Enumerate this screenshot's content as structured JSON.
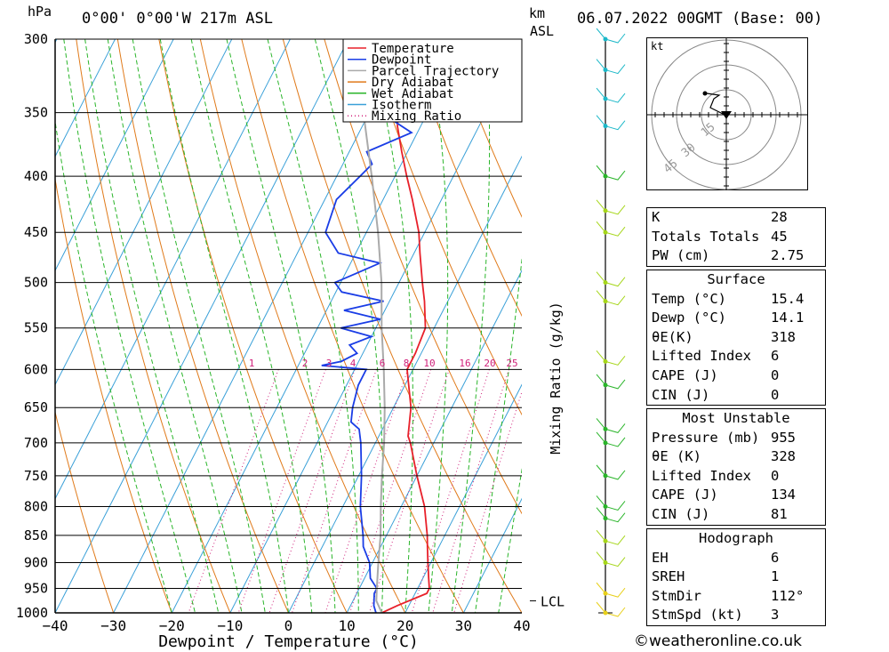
{
  "header": {
    "location": "0°00' 0°00'W 217m ASL",
    "datetime": "06.07.2022 00GMT (Base: 00)",
    "hpa_label": "hPa",
    "km_label": "km",
    "asl_label": "ASL"
  },
  "chart_data": {
    "type": "line",
    "title": "",
    "xlabel": "Dewpoint / Temperature (°C)",
    "ylabel": "hPa",
    "y2label": "Mixing Ratio (g/kg)",
    "xlim": [
      -40,
      40
    ],
    "ylim": [
      1000,
      300
    ],
    "xticks": [
      "−40",
      "−30",
      "−20",
      "−10",
      "0",
      "10",
      "20",
      "30",
      "40"
    ],
    "yticks": [
      300,
      350,
      400,
      450,
      500,
      550,
      600,
      650,
      700,
      750,
      800,
      850,
      900,
      950,
      1000
    ],
    "mixing_ratio_labels": [
      "1",
      "2",
      "3",
      "4",
      "6",
      "8",
      "10",
      "16",
      "20",
      "25"
    ],
    "legend": [
      "Temperature",
      "Dewpoint",
      "Parcel Trajectory",
      "Dry Adiabat",
      "Wet Adiabat",
      "Isotherm",
      "Mixing Ratio"
    ],
    "legend_position": "top-right",
    "lcl_label": "LCL",
    "lcl_pressure": 975,
    "series": [
      {
        "name": "Temperature",
        "color": "#e8202a",
        "points": [
          [
            1000,
            16
          ],
          [
            985,
            18
          ],
          [
            960,
            22
          ],
          [
            950,
            22
          ],
          [
            930,
            21
          ],
          [
            900,
            19.5
          ],
          [
            870,
            18
          ],
          [
            850,
            17
          ],
          [
            800,
            14
          ],
          [
            750,
            10
          ],
          [
            700,
            6
          ],
          [
            690,
            5
          ],
          [
            650,
            3
          ],
          [
            600,
            -1
          ],
          [
            580,
            -1
          ],
          [
            550,
            -1.5
          ],
          [
            520,
            -4
          ],
          [
            500,
            -6
          ],
          [
            470,
            -9
          ],
          [
            450,
            -11
          ],
          [
            420,
            -15
          ],
          [
            400,
            -18
          ],
          [
            380,
            -21
          ],
          [
            360,
            -24
          ],
          [
            350,
            -25
          ],
          [
            330,
            -29
          ],
          [
            320,
            -32
          ],
          [
            300,
            -35
          ]
        ]
      },
      {
        "name": "Dewpoint",
        "color": "#1a3de6",
        "points": [
          [
            1000,
            15
          ],
          [
            985,
            14
          ],
          [
            960,
            13
          ],
          [
            950,
            13
          ],
          [
            930,
            11
          ],
          [
            900,
            9.5
          ],
          [
            870,
            7
          ],
          [
            850,
            6
          ],
          [
            800,
            3
          ],
          [
            750,
            0.5
          ],
          [
            700,
            -2.5
          ],
          [
            680,
            -4
          ],
          [
            670,
            -6
          ],
          [
            650,
            -7
          ],
          [
            620,
            -8
          ],
          [
            600,
            -8
          ],
          [
            595,
            -16
          ],
          [
            590,
            -13
          ],
          [
            580,
            -11
          ],
          [
            570,
            -13
          ],
          [
            560,
            -10
          ],
          [
            550,
            -16
          ],
          [
            540,
            -10
          ],
          [
            530,
            -17
          ],
          [
            520,
            -11
          ],
          [
            510,
            -19
          ],
          [
            500,
            -21
          ],
          [
            490,
            -18
          ],
          [
            480,
            -15
          ],
          [
            470,
            -23
          ],
          [
            450,
            -27
          ],
          [
            420,
            -28
          ],
          [
            400,
            -26
          ],
          [
            390,
            -25
          ],
          [
            380,
            -27
          ],
          [
            365,
            -21
          ],
          [
            350,
            -28
          ],
          [
            340,
            -25
          ],
          [
            330,
            -33
          ],
          [
            320,
            -37
          ],
          [
            310,
            -37
          ],
          [
            300,
            -37
          ]
        ]
      },
      {
        "name": "Parcel Trajectory",
        "color": "#aaaaaa",
        "points": [
          [
            1000,
            16
          ],
          [
            975,
            14
          ],
          [
            950,
            13
          ],
          [
            900,
            11
          ],
          [
            850,
            9
          ],
          [
            800,
            6.5
          ],
          [
            750,
            4
          ],
          [
            700,
            1.5
          ],
          [
            650,
            -1.5
          ],
          [
            600,
            -5
          ],
          [
            550,
            -9
          ],
          [
            500,
            -13
          ],
          [
            450,
            -18
          ],
          [
            400,
            -24
          ],
          [
            350,
            -31
          ],
          [
            300,
            -40
          ]
        ]
      }
    ]
  },
  "hodograph": {
    "unit_label": "kt",
    "rings": [
      "15",
      "30",
      "45"
    ]
  },
  "indices": {
    "k_label": "K",
    "k": "28",
    "tt_label": "Totals Totals",
    "tt": "45",
    "pw_label": "PW (cm)",
    "pw": "2.75",
    "surface_title": "Surface",
    "temp_label": "Temp (°C)",
    "temp": "15.4",
    "dewp_label": "Dewp (°C)",
    "dewp": "14.1",
    "theta_label": "θE(K)",
    "theta": "318",
    "li_label": "Lifted Index",
    "li": "6",
    "cape_label": "CAPE (J)",
    "cape": "0",
    "cin_label": "CIN (J)",
    "cin": "0",
    "mu_title": "Most Unstable",
    "mu_pressure_label": "Pressure (mb)",
    "mu_pressure": "955",
    "mu_theta_label": "θE (K)",
    "mu_theta": "328",
    "mu_li_label": "Lifted Index",
    "mu_li": "0",
    "mu_cape_label": "CAPE (J)",
    "mu_cape": "134",
    "mu_cin_label": "CIN (J)",
    "mu_cin": "81",
    "hodo_title": "Hodograph",
    "eh_label": "EH",
    "eh": "6",
    "sreh_label": "SREH",
    "sreh": "1",
    "stmdir_label": "StmDir",
    "stmdir": "112°",
    "stmspd_label": "StmSpd (kt)",
    "stmspd": "3"
  },
  "copyright": "©weatheronline.co.uk"
}
